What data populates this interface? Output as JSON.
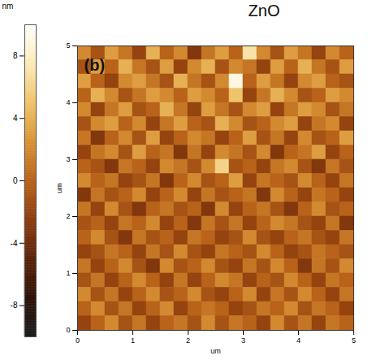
{
  "chart_data": {
    "type": "heatmap",
    "title": "ZnO",
    "annotation": "(b)",
    "xlabel": "um",
    "ylabel": "um",
    "xlim": [
      0,
      5
    ],
    "ylim": [
      0,
      5
    ],
    "xticks": [
      0,
      1,
      2,
      3,
      4,
      5
    ],
    "yticks": [
      0,
      1,
      2,
      3,
      4,
      5
    ],
    "colors": [
      "#1a1a1a",
      "#2d1206",
      "#5a220a",
      "#8c3c0e",
      "#b8621a",
      "#d99335",
      "#efc46a",
      "#fbeab8",
      "#ffffff"
    ],
    "colorbar": {
      "label": "nm",
      "range": [
        -10,
        10
      ],
      "ticks": [
        -8,
        -4,
        0,
        4,
        8
      ]
    },
    "cells": [
      [
        2,
        -1,
        3,
        1,
        -2,
        4,
        0,
        2,
        -3,
        1,
        3,
        0,
        7,
        2,
        -1,
        3,
        1,
        -2,
        2,
        0
      ],
      [
        -1,
        3,
        0,
        4,
        1,
        -1,
        3,
        -2,
        2,
        4,
        -1,
        2,
        1,
        -2,
        3,
        0,
        4,
        1,
        -1,
        3
      ],
      [
        3,
        0,
        -2,
        2,
        3,
        1,
        -1,
        4,
        1,
        -1,
        2,
        9,
        0,
        3,
        1,
        -2,
        2,
        3,
        0,
        -1
      ],
      [
        0,
        4,
        2,
        -1,
        1,
        3,
        2,
        0,
        3,
        2,
        0,
        5,
        -2,
        1,
        4,
        2,
        -1,
        0,
        3,
        2
      ],
      [
        2,
        -2,
        1,
        3,
        -1,
        0,
        4,
        1,
        -2,
        3,
        1,
        -1,
        2,
        3,
        -2,
        1,
        3,
        2,
        -1,
        1
      ],
      [
        -1,
        2,
        3,
        0,
        2,
        -2,
        1,
        3,
        0,
        -1,
        4,
        2,
        -1,
        0,
        2,
        3,
        -2,
        1,
        2,
        -2
      ],
      [
        1,
        -3,
        0,
        2,
        -1,
        3,
        -2,
        0,
        2,
        1,
        -2,
        0,
        3,
        -1,
        1,
        -2,
        2,
        -1,
        0,
        3
      ],
      [
        -2,
        1,
        2,
        -1,
        3,
        0,
        1,
        -3,
        1,
        -2,
        2,
        1,
        -1,
        2,
        -3,
        0,
        1,
        3,
        -2,
        0
      ],
      [
        0,
        -1,
        -3,
        1,
        0,
        -2,
        2,
        1,
        -1,
        2,
        6,
        -1,
        0,
        -2,
        1,
        2,
        -1,
        -3,
        1,
        -1
      ],
      [
        2,
        0,
        1,
        -2,
        -1,
        1,
        -3,
        0,
        2,
        -1,
        0,
        3,
        -2,
        1,
        0,
        -1,
        2,
        0,
        -2,
        1
      ],
      [
        -3,
        1,
        -1,
        0,
        2,
        -2,
        0,
        2,
        -2,
        1,
        -1,
        0,
        1,
        -3,
        2,
        0,
        -2,
        1,
        0,
        -2
      ],
      [
        1,
        -2,
        2,
        -1,
        -3,
        0,
        1,
        -1,
        0,
        -3,
        2,
        -2,
        0,
        1,
        -1,
        -3,
        0,
        2,
        -1,
        0
      ],
      [
        -1,
        0,
        -2,
        1,
        0,
        2,
        -2,
        0,
        -3,
        1,
        -1,
        1,
        -2,
        0,
        2,
        1,
        -1,
        -2,
        1,
        -3
      ],
      [
        0,
        2,
        -1,
        -3,
        1,
        -1,
        0,
        -2,
        1,
        0,
        -2,
        -1,
        2,
        -1,
        -2,
        0,
        1,
        -1,
        -2,
        1
      ],
      [
        -2,
        -1,
        1,
        0,
        -2,
        1,
        -1,
        2,
        -1,
        -2,
        1,
        0,
        -1,
        2,
        0,
        -2,
        -1,
        1,
        0,
        -1
      ],
      [
        1,
        -2,
        0,
        2,
        -1,
        -3,
        2,
        -1,
        0,
        2,
        -1,
        -2,
        1,
        -1,
        2,
        0,
        -3,
        1,
        -1,
        2
      ],
      [
        -1,
        1,
        -2,
        0,
        2,
        0,
        -2,
        1,
        -2,
        0,
        2,
        1,
        -2,
        0,
        -1,
        2,
        0,
        -2,
        1,
        0
      ],
      [
        2,
        -1,
        1,
        -2,
        0,
        2,
        -1,
        0,
        2,
        -1,
        -2,
        0,
        2,
        -2,
        1,
        -1,
        2,
        0,
        -2,
        1
      ],
      [
        0,
        2,
        -1,
        1,
        -2,
        0,
        2,
        -2,
        0,
        1,
        0,
        -2,
        -1,
        1,
        0,
        2,
        -1,
        1,
        0,
        -2
      ],
      [
        -2,
        0,
        2,
        -1,
        1,
        -2,
        0,
        1,
        -1,
        2,
        -1,
        1,
        0,
        -2,
        2,
        -1,
        1,
        -2,
        1,
        0
      ]
    ]
  }
}
